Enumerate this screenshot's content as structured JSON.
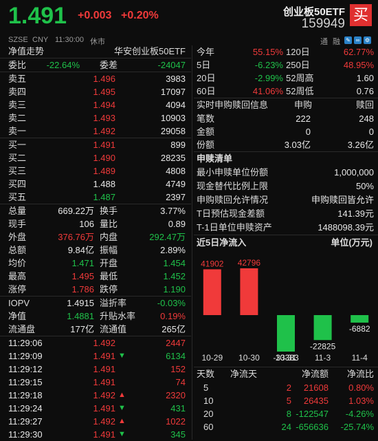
{
  "header": {
    "price": "1.491",
    "change": "+0.003",
    "change_pct": "+0.20%",
    "title": "创业板50ETF",
    "code": "159949",
    "buy_label": "买",
    "exchange": "SZSE",
    "currency": "CNY",
    "time": "11:30:00",
    "status": "休市",
    "tool_labels": [
      "通",
      "融"
    ]
  },
  "left": {
    "nav_title": "净值走势",
    "nav_fund": "华安创业板50ETF",
    "weibi_label": "委比",
    "weibi_value": "-22.64%",
    "weicha_label": "委差",
    "weicha_value": "-24047",
    "asks": [
      {
        "label": "卖五",
        "price": "1.496",
        "vol": "3983"
      },
      {
        "label": "卖四",
        "price": "1.495",
        "vol": "17097"
      },
      {
        "label": "卖三",
        "price": "1.494",
        "vol": "4094"
      },
      {
        "label": "卖二",
        "price": "1.493",
        "vol": "10903"
      },
      {
        "label": "卖一",
        "price": "1.492",
        "vol": "29058"
      }
    ],
    "bids": [
      {
        "label": "买一",
        "price": "1.491",
        "vol": "899"
      },
      {
        "label": "买二",
        "price": "1.490",
        "vol": "28235"
      },
      {
        "label": "买三",
        "price": "1.489",
        "vol": "4808"
      },
      {
        "label": "买四",
        "price": "1.488",
        "vol": "4749"
      },
      {
        "label": "买五",
        "price": "1.487",
        "vol": "2397"
      }
    ],
    "stats": [
      {
        "l1": "总量",
        "v1": "669.22万",
        "c1": "white",
        "l2": "换手",
        "v2": "3.77%",
        "c2": "white"
      },
      {
        "l1": "现手",
        "v1": "106",
        "c1": "white",
        "l2": "量比",
        "v2": "0.89",
        "c2": "white"
      },
      {
        "l1": "外盘",
        "v1": "376.76万",
        "c1": "red",
        "l2": "内盘",
        "v2": "292.47万",
        "c2": "green"
      },
      {
        "l1": "总额",
        "v1": "9.84亿",
        "c1": "white",
        "l2": "振幅",
        "v2": "2.89%",
        "c2": "white"
      },
      {
        "l1": "均价",
        "v1": "1.471",
        "c1": "green",
        "l2": "开盘",
        "v2": "1.454",
        "c2": "green"
      },
      {
        "l1": "最高",
        "v1": "1.495",
        "c1": "red",
        "l2": "最低",
        "v2": "1.452",
        "c2": "green"
      },
      {
        "l1": "涨停",
        "v1": "1.786",
        "c1": "red",
        "l2": "跌停",
        "v2": "1.190",
        "c2": "green"
      }
    ],
    "stats2": [
      {
        "l1": "IOPV",
        "v1": "1.4915",
        "c1": "white",
        "l2": "溢折率",
        "v2": "-0.03%",
        "c2": "green"
      },
      {
        "l1": "净值",
        "v1": "1.4881",
        "c1": "green",
        "l2": "升贴水率",
        "v2": "0.19%",
        "c2": "red"
      },
      {
        "l1": "流通盘",
        "v1": "177亿",
        "c1": "white",
        "l2": "流通值",
        "v2": "265亿",
        "c2": "white"
      }
    ],
    "ticks": [
      {
        "time": "11:29:06",
        "price": "1.492",
        "arrow": "",
        "vol": "2447",
        "vc": "red"
      },
      {
        "time": "11:29:09",
        "price": "1.491",
        "arrow": "down",
        "vol": "6134",
        "vc": "green"
      },
      {
        "time": "11:29:12",
        "price": "1.491",
        "arrow": "",
        "vol": "152",
        "vc": "red"
      },
      {
        "time": "11:29:15",
        "price": "1.491",
        "arrow": "",
        "vol": "74",
        "vc": "red"
      },
      {
        "time": "11:29:18",
        "price": "1.492",
        "arrow": "up",
        "vol": "2320",
        "vc": "red"
      },
      {
        "time": "11:29:24",
        "price": "1.491",
        "arrow": "down",
        "vol": "431",
        "vc": "green"
      },
      {
        "time": "11:29:27",
        "price": "1.492",
        "arrow": "up",
        "vol": "1022",
        "vc": "red"
      },
      {
        "time": "11:29:30",
        "price": "1.491",
        "arrow": "down",
        "vol": "345",
        "vc": "green"
      }
    ]
  },
  "right": {
    "perf": [
      {
        "l1": "今年",
        "v1": "55.15%",
        "c1": "red",
        "l2": "120日",
        "v2": "62.77%",
        "c2": "red"
      },
      {
        "l1": "5日",
        "v1": "-6.23%",
        "c1": "green",
        "l2": "250日",
        "v2": "48.95%",
        "c2": "red"
      },
      {
        "l1": "20日",
        "v1": "-2.99%",
        "c1": "green",
        "l2": "52周高",
        "v2": "1.60",
        "c2": "white"
      },
      {
        "l1": "60日",
        "v1": "41.06%",
        "c1": "red",
        "l2": "52周低",
        "v2": "0.76",
        "c2": "white"
      }
    ],
    "subred_title": "实时申购赎回信息",
    "subred_col1": "申购",
    "subred_col2": "赎回",
    "subred_rows": [
      {
        "label": "笔数",
        "v1": "222",
        "v2": "248"
      },
      {
        "label": "金额",
        "v1": "0",
        "v2": "0"
      },
      {
        "label": "份额",
        "v1": "3.03亿",
        "v2": "3.26亿"
      }
    ],
    "list_title": "申赎清单",
    "list_rows": [
      {
        "label": "最小申赎单位份额",
        "value": "1,000,000"
      },
      {
        "label": "现金替代比例上限",
        "value": "50%"
      },
      {
        "label": "申购赎回允许情况",
        "value": "申购赎回皆允许"
      },
      {
        "label": "T日预估现金差额",
        "value": "141.39元"
      },
      {
        "label": "T-1日单位申赎资产",
        "value": "1488098.39元"
      }
    ],
    "flow_title": "近5日净流入",
    "flow_unit": "单位(万元)",
    "table_headers": [
      "天数",
      "净流天",
      "净流额",
      "净流比"
    ],
    "table_rows": [
      {
        "days": "5",
        "n": "2",
        "amt": "21608",
        "pct": "0.80%",
        "c": "red"
      },
      {
        "days": "10",
        "n": "5",
        "amt": "26435",
        "pct": "1.03%",
        "c": "red"
      },
      {
        "days": "20",
        "n": "8",
        "amt": "-122547",
        "pct": "-4.26%",
        "c": "green"
      },
      {
        "days": "60",
        "n": "24",
        "amt": "-656636",
        "pct": "-25.74%",
        "c": "green"
      }
    ]
  },
  "chart_data": {
    "type": "bar",
    "title": "近5日净流入",
    "ylabel": "单位(万元)",
    "categories": [
      "10-29",
      "10-30",
      "10-31",
      "11-3",
      "11-4"
    ],
    "values": [
      41902,
      42796,
      -33383,
      -22825,
      -6882
    ],
    "colors": {
      "positive": "#f03a3a",
      "negative": "#1fc14a"
    }
  }
}
